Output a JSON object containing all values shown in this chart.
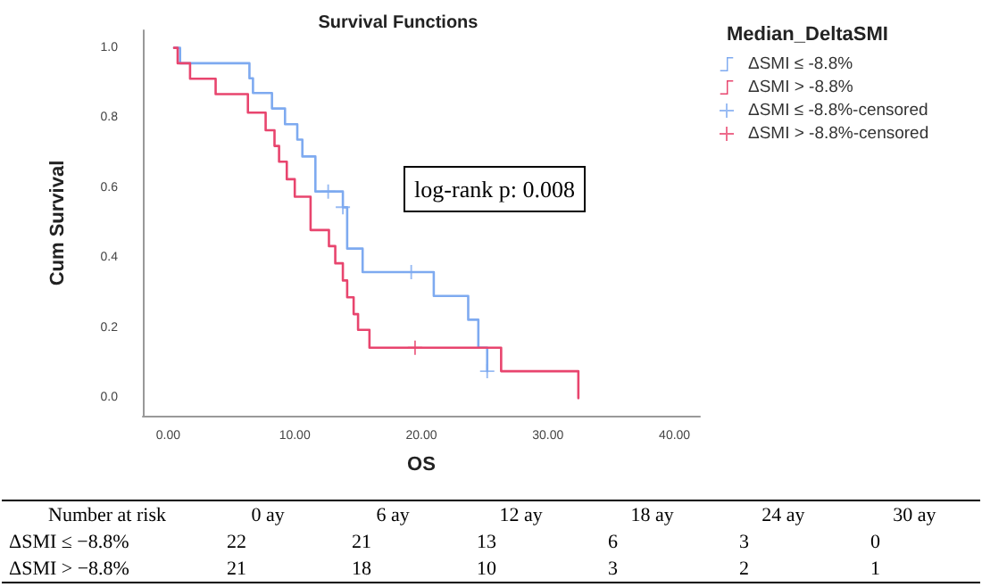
{
  "chart_data": {
    "type": "step",
    "title": "Survival Functions",
    "xlabel": "OS",
    "ylabel": "Cum Survival",
    "legend_title": "Median_DeltaSMI",
    "annotations": [
      "log-rank p: 0.008",
      "Number at risk",
      "0 ay",
      "6 ay",
      "12 ay",
      "18 ay",
      "24 ay",
      "30 ay",
      "ΔSMI ≤ −8.8%",
      "22",
      "21",
      "13",
      "6",
      "3",
      "0",
      "ΔSMI > −8.8%",
      "21",
      "18",
      "10",
      "3",
      "2",
      "1"
    ],
    "xlim": [
      -2,
      42
    ],
    "ylim": [
      -0.05,
      1.05
    ],
    "xticks": [
      {
        "value": 0,
        "label": "0.00"
      },
      {
        "value": 10,
        "label": "10.00"
      },
      {
        "value": 20,
        "label": "20.00"
      },
      {
        "value": 30,
        "label": "30.00"
      },
      {
        "value": 40,
        "label": "40.00"
      }
    ],
    "yticks": [
      {
        "value": 0,
        "label": "0.0"
      },
      {
        "value": 0.2,
        "label": "0.2"
      },
      {
        "value": 0.4,
        "label": "0.4"
      },
      {
        "value": 0.6,
        "label": "0.6"
      },
      {
        "value": 0.8,
        "label": "0.8"
      },
      {
        "value": 1,
        "label": "1.0"
      }
    ],
    "grid": false,
    "legend": "top right",
    "series": [
      {
        "name": "ΔSMI ≤ -8.8%",
        "type": "step",
        "marker": "none",
        "color": "#7eaaf0",
        "x": [
          0.47,
          0.94,
          6.42,
          6.7,
          8.2,
          9.23,
          10.2,
          10.6,
          11.63,
          13.8,
          14.14,
          15.36,
          20.98,
          23.7,
          24.5,
          25.2
        ],
        "values": [
          1.0,
          0.956,
          0.913,
          0.871,
          0.827,
          0.782,
          0.738,
          0.69,
          0.59,
          0.545,
          0.427,
          0.36,
          0.292,
          0.224,
          0.144,
          0.077
        ]
      },
      {
        "name": "ΔSMI > -8.8%",
        "type": "step",
        "marker": "none",
        "color": "#e8456e",
        "x": [
          0.47,
          0.75,
          1.73,
          3.75,
          6.3,
          7.7,
          8.4,
          8.76,
          9.37,
          10.0,
          11.25,
          12.7,
          13.2,
          13.8,
          14.14,
          14.65,
          15.0,
          15.9,
          26.3,
          32.4
        ],
        "values": [
          1.0,
          0.956,
          0.912,
          0.868,
          0.815,
          0.765,
          0.72,
          0.675,
          0.625,
          0.575,
          0.48,
          0.434,
          0.385,
          0.336,
          0.288,
          0.24,
          0.195,
          0.144,
          0.077,
          0.0
        ]
      },
      {
        "name": "ΔSMI ≤ -8.8%-censored",
        "type": "scatter",
        "marker": "cross",
        "color": "#7eaaf0",
        "x": [
          12.64,
          13.8,
          19.2,
          25.2
        ],
        "values": [
          0.59,
          0.545,
          0.36,
          0.077
        ]
      },
      {
        "name": "ΔSMI > -8.8%-censored",
        "type": "scatter",
        "marker": "cross",
        "color": "#e8456e",
        "x": [
          19.5
        ],
        "values": [
          0.144
        ]
      }
    ]
  }
}
